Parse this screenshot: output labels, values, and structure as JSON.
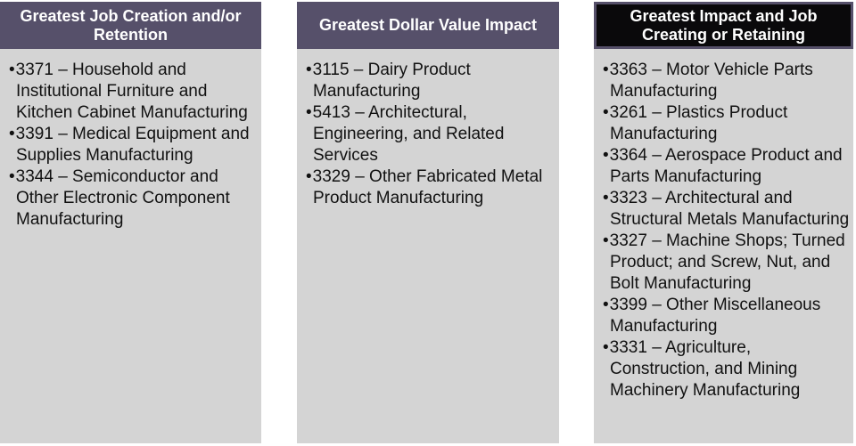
{
  "bullet_char": "•",
  "colors": {
    "header_purple": "#56506a",
    "header_black": "#0a090b",
    "body_gray": "#d4d4d4",
    "header_text": "#ffffff",
    "body_text": "#111111",
    "page_background": "#ffffff"
  },
  "columns": [
    {
      "header": "Greatest Job Creation and/or Retention",
      "header_style": "purple",
      "items": [
        "3371 – Household and Institutional Furniture and Kitchen Cabinet Manufacturing",
        "3391 – Medical Equipment and Supplies Manufacturing",
        "3344 – Semiconductor and Other Electronic Component Manufacturing"
      ]
    },
    {
      "header": "Greatest Dollar Value Impact",
      "header_style": "purple",
      "items": [
        "3115 – Dairy Product Manufacturing",
        "5413 – Architectural, Engineering, and Related Services",
        "3329 – Other Fabricated Metal Product Manufacturing"
      ]
    },
    {
      "header": "Greatest Impact and Job Creating or Retaining",
      "header_style": "black",
      "items": [
        "3363 – Motor Vehicle Parts Manufacturing",
        "3261 – Plastics Product Manufacturing",
        "3364 – Aerospace Product and Parts Manufacturing",
        "3323 – Architectural and Structural Metals Manufacturing",
        "3327 – Machine Shops; Turned Product; and Screw, Nut, and Bolt Manufacturing",
        "3399 – Other Miscellaneous Manufacturing",
        "3331 – Agriculture, Construction, and Mining Machinery Manufacturing"
      ]
    }
  ]
}
